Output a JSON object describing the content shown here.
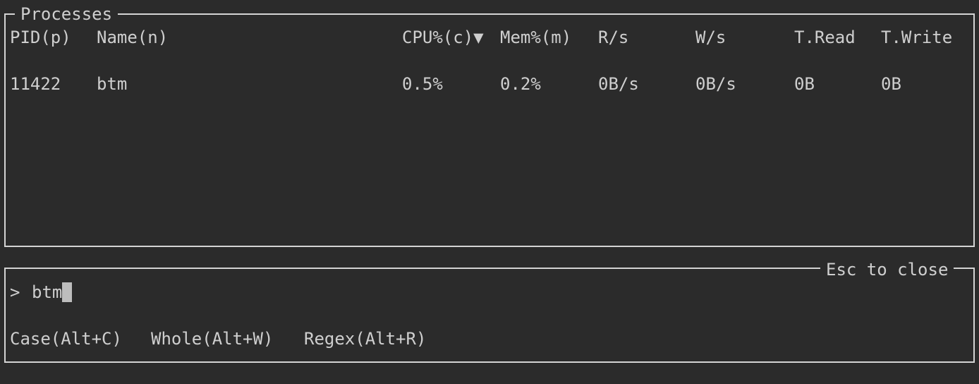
{
  "processes": {
    "title": "Processes",
    "columns": [
      "PID(p)",
      "Name(n)",
      "CPU%(c)▼",
      "Mem%(m)",
      "R/s",
      "W/s",
      "T.Read",
      "T.Write"
    ],
    "rows": [
      [
        "11422",
        "btm",
        "0.5%",
        "0.2%",
        "0B/s",
        "0B/s",
        "0B",
        "0B"
      ]
    ]
  },
  "search": {
    "close_hint": "Esc to close",
    "prompt": ">",
    "query": "btm",
    "options": [
      "Case(Alt+C)",
      "Whole(Alt+W)",
      "Regex(Alt+R)"
    ]
  }
}
